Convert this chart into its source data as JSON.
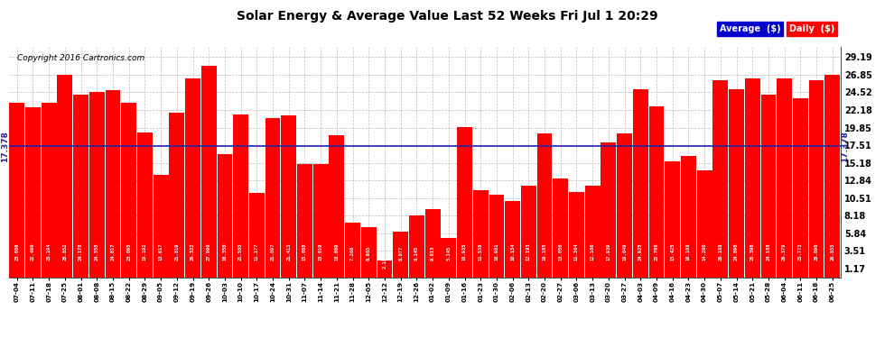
{
  "title": "Solar Energy & Average Value Last 52 Weeks Fri Jul 1 20:29",
  "copyright": "Copyright 2016 Cartronics.com",
  "average_line": 17.378,
  "average_label": "17.378",
  "yticks": [
    1.17,
    3.51,
    5.84,
    8.18,
    10.51,
    12.84,
    15.18,
    17.51,
    19.85,
    22.18,
    24.52,
    26.85,
    29.19
  ],
  "ymin": 0.0,
  "ymax": 30.5,
  "bar_color": "#FF0000",
  "average_line_color": "#2222AA",
  "legend_avg_bg": "#0000CC",
  "legend_daily_bg": "#FF0000",
  "legend_text_color": "#FFFFFF",
  "background_color": "#FFFFFF",
  "grid_color": "#BBBBBB",
  "categories": [
    "07-04",
    "07-11",
    "07-18",
    "07-25",
    "08-01",
    "08-08",
    "08-15",
    "08-22",
    "08-29",
    "09-05",
    "09-12",
    "09-19",
    "09-26",
    "10-03",
    "10-10",
    "10-17",
    "10-24",
    "10-31",
    "11-07",
    "11-14",
    "11-21",
    "11-28",
    "12-05",
    "12-12",
    "12-19",
    "12-26",
    "01-02",
    "01-09",
    "01-16",
    "01-23",
    "01-30",
    "02-06",
    "02-13",
    "02-20",
    "02-27",
    "03-06",
    "03-13",
    "03-20",
    "03-27",
    "04-03",
    "04-09",
    "04-16",
    "04-23",
    "04-30",
    "05-07",
    "05-14",
    "05-21",
    "05-28",
    "06-04",
    "06-11",
    "06-18",
    "06-25"
  ],
  "values": [
    23.089,
    22.49,
    23.194,
    26.852,
    24.178,
    24.558,
    24.817,
    23.095,
    19.192,
    13.617,
    21.819,
    26.322,
    27.99,
    16.35,
    21.585,
    11.177,
    21.097,
    21.413,
    15.068,
    15.019,
    18.869,
    7.208,
    6.665,
    2.18,
    6.077,
    8.145,
    9.013,
    5.145,
    19.935,
    11.538,
    10.981,
    10.154,
    12.193,
    19.105,
    13.05,
    11.304,
    12.106,
    17.939,
    19.049,
    24.925,
    22.7,
    15.425,
    16.108,
    14.2,
    26.188,
    24.896,
    26.396,
    24.188,
    26.379,
    23.773,
    26.096,
    26.855
  ],
  "value_labels": [
    "23.089",
    "22.490",
    "23.194",
    "26.852",
    "24.178",
    "24.558",
    "24.817",
    "23.095",
    "19.192",
    "13.617",
    "21.819",
    "26.322",
    "27.990",
    "16.350",
    "21.585",
    "11.177",
    "21.097",
    "21.413",
    "15.068",
    "15.019",
    "18.869",
    "7.208",
    "6.665",
    "2.18",
    "6.077",
    "8.145",
    "9.013",
    "5.145",
    "19.935",
    "11.538",
    "10.981",
    "10.154",
    "12.193",
    "19.105",
    "13.050",
    "11.304",
    "12.106",
    "17.939",
    "19.049",
    "24.925",
    "22.700",
    "15.425",
    "16.108",
    "14.200",
    "26.188",
    "24.896",
    "26.396",
    "24.188",
    "26.379",
    "23.773",
    "26.096",
    "26.855"
  ]
}
